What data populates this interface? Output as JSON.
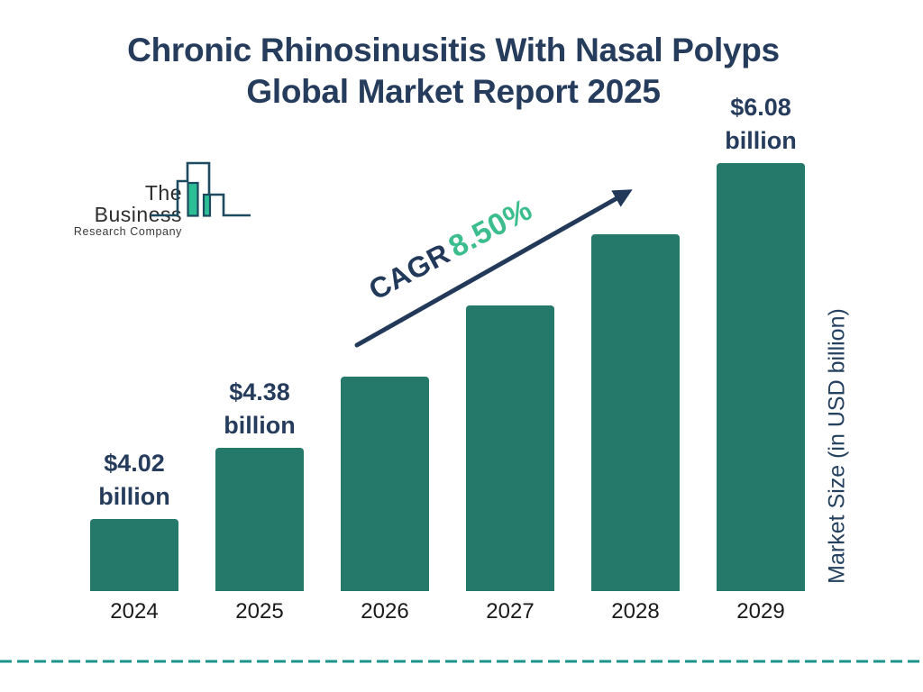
{
  "title": {
    "line1": "Chronic Rhinosinusitis With Nasal Polyps",
    "line2": "Global Market Report 2025"
  },
  "logo": {
    "name": "The Business",
    "subname": "Research Company"
  },
  "cagr": {
    "label": "CAGR",
    "value": "8.50%"
  },
  "colors": {
    "navy_text": "#253C5C",
    "bar_teal": "#24796B",
    "green_accent": "#3BBD8D",
    "arrow_navy": "#22395A",
    "dashed_line_teal": "#1B948B",
    "logo_outline": "#1C4A5E",
    "logo_green": "#2EBE95",
    "year_text": "#1a1a1a"
  },
  "chart_data": {
    "type": "bar",
    "title": "Chronic Rhinosinusitis With Nasal Polyps Global Market Report 2025",
    "categories": [
      "2024",
      "2025",
      "2026",
      "2027",
      "2028",
      "2029"
    ],
    "values": [
      4.02,
      4.38,
      4.75,
      5.16,
      5.61,
      6.08
    ],
    "unit": "USD billion",
    "bar_labels": [
      [
        "$4.02",
        "billion"
      ],
      [
        "$4.38",
        "billion"
      ],
      null,
      null,
      null,
      [
        "$6.08",
        "billion"
      ]
    ],
    "xlabel": "",
    "ylabel": "Market Size (in USD billion)",
    "annotation": "CAGR 8.50%",
    "bar_color": "#24796B",
    "grid": false,
    "legend": false
  }
}
